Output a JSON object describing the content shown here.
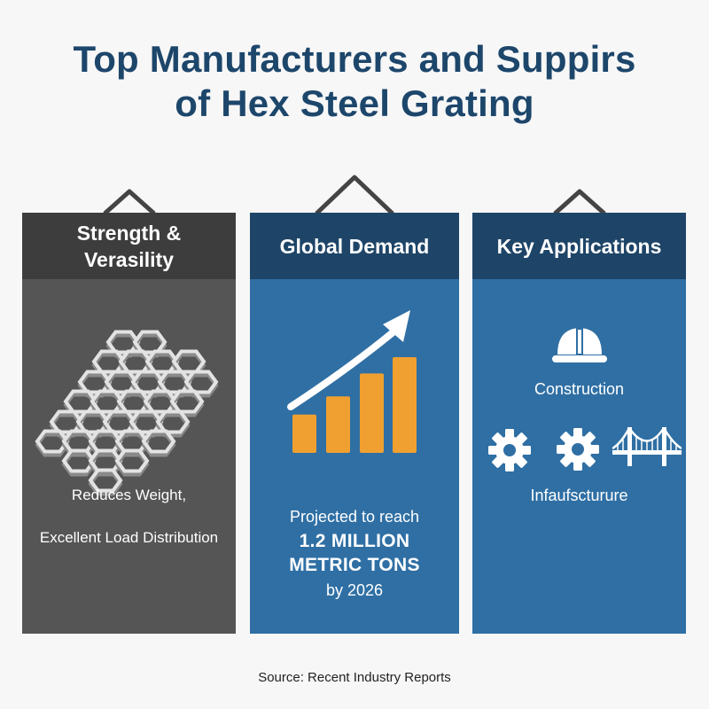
{
  "title": {
    "line1": "Top Manufacturers and Suppirs",
    "line2": "of Hex Steel Grating"
  },
  "panels": {
    "strength": {
      "heading_line1": "Strength &",
      "heading_line2": "Verasility",
      "text_line1": "Reduces Weight,",
      "text_line2": "Excellent Load Distribution",
      "icon": "hex-grating-icon"
    },
    "demand": {
      "heading": "Global Demand",
      "text_line1": "Projected to reach",
      "highlight_line1": "1.2 MILLION",
      "highlight_line2": "METRIC TONS",
      "text_line2": "by 2026",
      "icon": "growth-chart-icon",
      "bar_fractions": [
        0.4,
        0.59,
        0.83,
        1.0
      ]
    },
    "applications": {
      "heading": "Key Applications",
      "item1": "Construction",
      "item2": "Infaufscturure",
      "icons": [
        "hard-hat-icon",
        "gear-icon",
        "gear-icon",
        "bridge-icon"
      ]
    }
  },
  "source": "Source: Recent Industry Reports",
  "colors": {
    "title": "#1d466b",
    "panel_dark": "#555555",
    "panel_dark_head": "#3d3d3d",
    "panel_blue": "#2f6fa4",
    "panel_blue_head": "#1e4568",
    "accent_orange": "#f0a030"
  }
}
